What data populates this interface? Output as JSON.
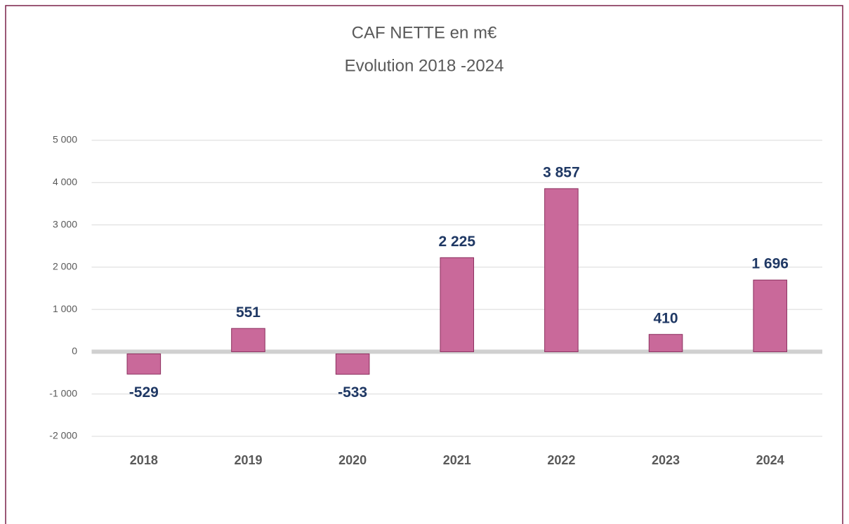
{
  "chart_data": {
    "type": "bar",
    "title": "CAF NETTE en m€",
    "subtitle": "Evolution 2018 -2024",
    "categories": [
      "2018",
      "2019",
      "2020",
      "2021",
      "2022",
      "2023",
      "2024"
    ],
    "values": [
      -529,
      551,
      -533,
      2225,
      3857,
      410,
      1696
    ],
    "value_labels": [
      "-529",
      "551",
      "-533",
      "2 225",
      "3 857",
      "410",
      "1 696"
    ],
    "color": "#c9699a",
    "ylim": [
      -2000,
      5000
    ],
    "yticks": [
      {
        "value": -2000,
        "label": "-2 000"
      },
      {
        "value": -1000,
        "label": "-1 000"
      },
      0,
      {
        "value": 1000,
        "label": "1 000"
      },
      {
        "value": 2000,
        "label": "2 000"
      },
      {
        "value": 3000,
        "label": "3 000"
      },
      {
        "value": 4000,
        "label": "4 000"
      },
      {
        "value": 5000,
        "label": "5 000"
      }
    ],
    "grid": true
  }
}
